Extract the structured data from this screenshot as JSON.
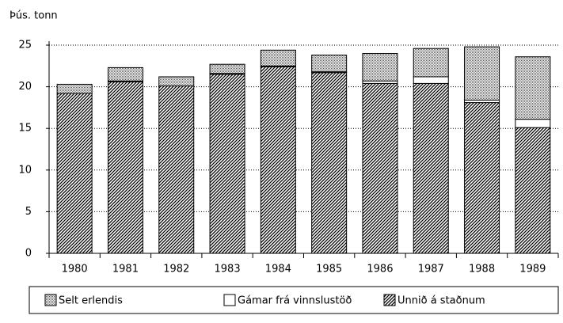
{
  "chart_data": {
    "type": "stacked_bar",
    "y_label": "Þús. tonn",
    "categories": [
      "1980",
      "1981",
      "1982",
      "1983",
      "1984",
      "1985",
      "1986",
      "1987",
      "1988",
      "1989"
    ],
    "series": [
      {
        "name": "Selt erlendis",
        "color": "#000000",
        "pattern": "dots",
        "values": [
          1.1,
          1.6,
          1.1,
          1.1,
          1.9,
          2.0,
          3.3,
          3.4,
          6.4,
          7.5
        ]
      },
      {
        "name": "Gámar frá vinnslustöð",
        "color": "#ffffff",
        "pattern": "none",
        "values": [
          0,
          0.1,
          0,
          0.1,
          0.1,
          0.1,
          0.3,
          0.8,
          0.3,
          1.0
        ]
      },
      {
        "name": "Unnið á staðnum",
        "color": "#000000",
        "pattern": "hatch",
        "values": [
          19.2,
          20.6,
          20.1,
          21.5,
          22.4,
          21.7,
          20.4,
          20.4,
          18.1,
          15.1
        ]
      }
    ],
    "ylim": [
      0,
      25
    ],
    "yticks": [
      0,
      5,
      10,
      15,
      20,
      25
    ],
    "grid": true
  }
}
